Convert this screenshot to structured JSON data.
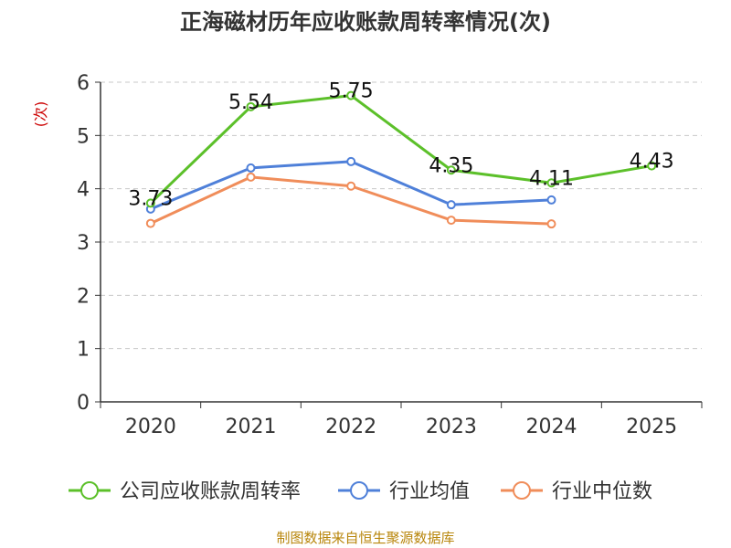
{
  "chart_data": {
    "type": "line",
    "title": "正海磁材历年应收账款周转率情况(次)",
    "ylabel": "(次)",
    "xlabel": "",
    "categories": [
      "2020",
      "2021",
      "2022",
      "2023",
      "2024",
      "2025"
    ],
    "ylim": [
      0,
      6
    ],
    "yticks": [
      0,
      1,
      2,
      3,
      4,
      5,
      6
    ],
    "grid": true,
    "legend_position": "bottom",
    "series": [
      {
        "name": "公司应收账款周转率",
        "color": "#5cc02a",
        "values": [
          3.73,
          5.54,
          5.75,
          4.35,
          4.11,
          4.43
        ],
        "data_labels": [
          "3.73",
          "5.54",
          "5.75",
          "4.35",
          "4.11",
          "4.43"
        ]
      },
      {
        "name": "行业均值",
        "color": "#4f80d9",
        "values": [
          3.62,
          4.39,
          4.51,
          3.7,
          3.79,
          null
        ]
      },
      {
        "name": "行业中位数",
        "color": "#f08d5a",
        "values": [
          3.35,
          4.22,
          4.05,
          3.41,
          3.34,
          null
        ]
      }
    ],
    "source": "制图数据来自恒生聚源数据库"
  }
}
